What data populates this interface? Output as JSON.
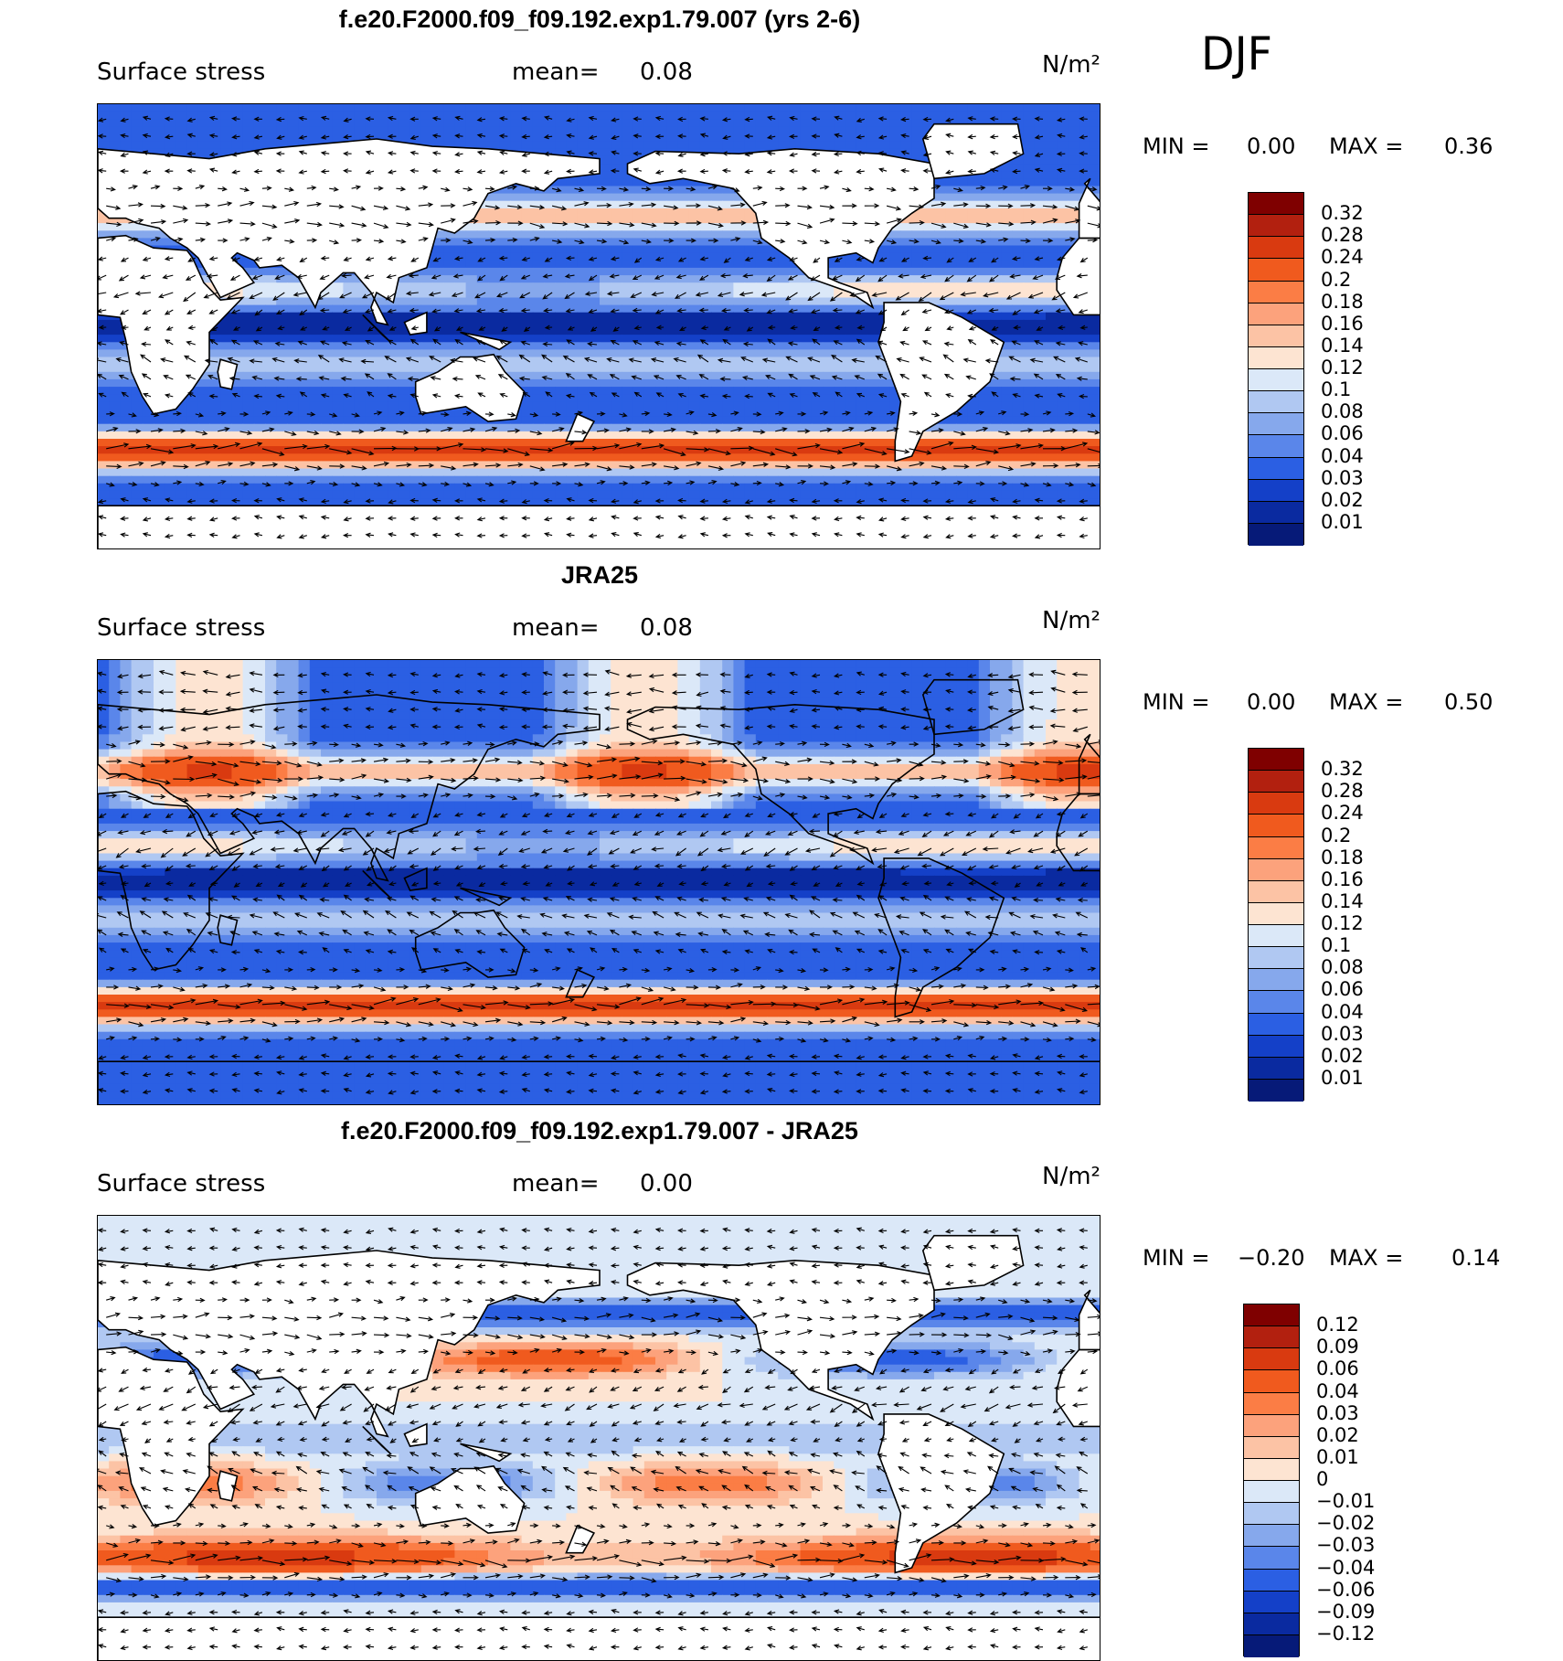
{
  "season": "DJF",
  "panels": [
    {
      "title": "f.e20.F2000.f09_f09.192.exp1.79.007 (yrs 2-6)",
      "variable": "Surface stress",
      "mean_label": "mean=",
      "mean_value": "0.08",
      "units": "N/m²",
      "min_label": "MIN =",
      "min_value": "0.00",
      "max_label": "MAX =",
      "max_value": "0.36",
      "colorbar": {
        "labels": [
          "0.32",
          "0.28",
          "0.24",
          "0.2",
          "0.18",
          "0.16",
          "0.14",
          "0.12",
          "0.1",
          "0.08",
          "0.06",
          "0.04",
          "0.03",
          "0.02",
          "0.01"
        ],
        "colors": [
          "#7f0000",
          "#b2200f",
          "#d93a10",
          "#f05a1e",
          "#fb7d45",
          "#fca27c",
          "#fcc3a5",
          "#fde4d2",
          "#dbe8f8",
          "#b0c8f2",
          "#86a8ec",
          "#5a86ea",
          "#2b5fe3",
          "#1440c8",
          "#0a2aa0",
          "#061a78"
        ]
      }
    },
    {
      "title": "JRA25",
      "variable": "Surface stress",
      "mean_label": "mean=",
      "mean_value": "0.08",
      "units": "N/m²",
      "min_label": "MIN =",
      "min_value": "0.00",
      "max_label": "MAX =",
      "max_value": "0.50",
      "colorbar": {
        "labels": [
          "0.32",
          "0.28",
          "0.24",
          "0.2",
          "0.18",
          "0.16",
          "0.14",
          "0.12",
          "0.1",
          "0.08",
          "0.06",
          "0.04",
          "0.03",
          "0.02",
          "0.01"
        ],
        "colors": [
          "#7f0000",
          "#b2200f",
          "#d93a10",
          "#f05a1e",
          "#fb7d45",
          "#fca27c",
          "#fcc3a5",
          "#fde4d2",
          "#dbe8f8",
          "#b0c8f2",
          "#86a8ec",
          "#5a86ea",
          "#2b5fe3",
          "#1440c8",
          "#0a2aa0",
          "#061a78"
        ]
      }
    },
    {
      "title": "f.e20.F2000.f09_f09.192.exp1.79.007 - JRA25",
      "variable": "Surface stress",
      "mean_label": "mean=",
      "mean_value": "0.00",
      "units": "N/m²",
      "min_label": "MIN =",
      "min_value": "−0.20",
      "max_label": "MAX =",
      "max_value": "0.14",
      "colorbar": {
        "labels": [
          "0.12",
          "0.09",
          "0.06",
          "0.04",
          "0.03",
          "0.02",
          "0.01",
          "0",
          "−0.01",
          "−0.02",
          "−0.03",
          "−0.04",
          "−0.06",
          "−0.09",
          "−0.12"
        ],
        "colors": [
          "#7f0000",
          "#b2200f",
          "#d93a10",
          "#f05a1e",
          "#fb7d45",
          "#fca27c",
          "#fcc3a5",
          "#fde4d2",
          "#dbe8f8",
          "#b0c8f2",
          "#86a8ec",
          "#5a86ea",
          "#2b5fe3",
          "#1440c8",
          "#0a2aa0",
          "#061a78"
        ]
      }
    }
  ]
}
